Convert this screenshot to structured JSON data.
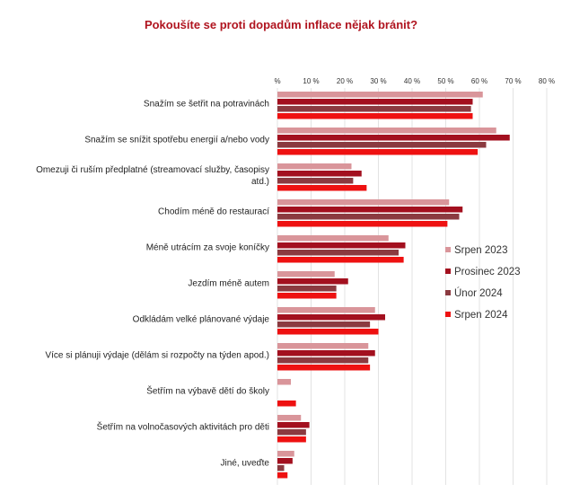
{
  "chart_data": {
    "type": "bar",
    "orientation": "horizontal",
    "title": "Pokoušíte se proti dopadům inflace nějak bránit?",
    "xlim": [
      0,
      80
    ],
    "x_ticks": [
      "%",
      "10 %",
      "20 %",
      "30 %",
      "40 %",
      "50 %",
      "60 %",
      "70 %",
      "80 %"
    ],
    "grid": true,
    "legend_position": "right",
    "categories": [
      [
        "Snažím se šetřit na potravinách"
      ],
      [
        "Snažím se snížit spotřebu energií a/nebo vody"
      ],
      [
        "Omezuji či ruším předplatné (streamovací služby, časopisy",
        "atd.)"
      ],
      [
        "Chodím méně do restaurací"
      ],
      [
        "Méně utrácím za svoje koníčky"
      ],
      [
        "Jezdím méně autem"
      ],
      [
        "Odkládám velké plánované výdaje"
      ],
      [
        "Více si plánuji výdaje (dělám si rozpočty na týden apod.)"
      ],
      [
        "Šetřím na výbavě dětí do školy"
      ],
      [
        "Šetřím na volnočasových aktivitách pro děti"
      ],
      [
        "Jiné, uveďte"
      ]
    ],
    "series": [
      {
        "name": "Srpen 2023",
        "color": "#d9959a",
        "values": [
          61,
          65,
          22,
          51,
          33,
          17,
          29,
          27,
          4,
          7,
          5
        ]
      },
      {
        "name": "Prosinec 2023",
        "color": "#a3101f",
        "values": [
          58,
          69,
          25,
          55,
          38,
          21,
          32,
          29,
          0,
          9.5,
          4.5
        ]
      },
      {
        "name": "Únor 2024",
        "color": "#8b3a40",
        "values": [
          57.5,
          62,
          22.5,
          54,
          36,
          17.5,
          27.5,
          27,
          0,
          8.5,
          2
        ]
      },
      {
        "name": "Srpen 2024",
        "color": "#ee1111",
        "values": [
          58,
          59.5,
          26.5,
          50.5,
          37.5,
          17.5,
          30,
          27.5,
          5.5,
          8.5,
          3
        ]
      }
    ]
  }
}
